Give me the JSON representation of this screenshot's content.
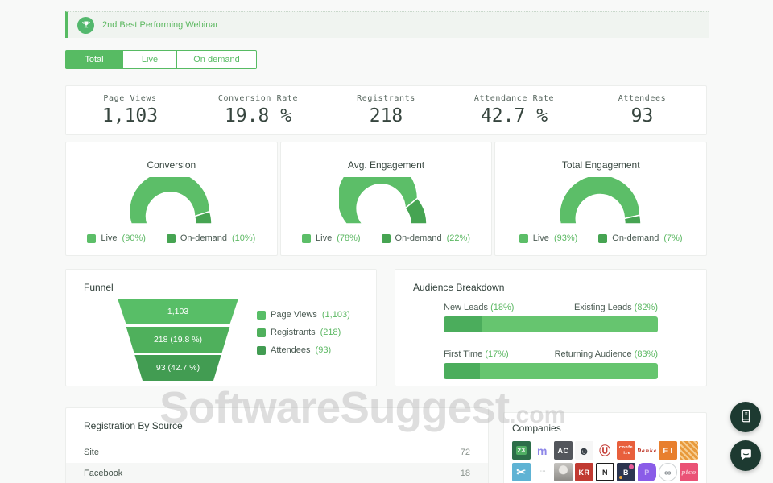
{
  "banner": {
    "icon": "trophy",
    "label": "2nd Best Performing Webinar"
  },
  "tabs": [
    {
      "label": "Total",
      "active": true
    },
    {
      "label": "Live",
      "active": false
    },
    {
      "label": "On demand",
      "active": false
    }
  ],
  "stats": [
    {
      "label": "Page Views",
      "value": "1,103"
    },
    {
      "label": "Conversion Rate",
      "value": "19.8 %"
    },
    {
      "label": "Registrants",
      "value": "218"
    },
    {
      "label": "Attendance Rate",
      "value": "42.7 %"
    },
    {
      "label": "Attendees",
      "value": "93"
    }
  ],
  "gauges": [
    {
      "title": "Conversion",
      "segments": [
        {
          "label": "Live",
          "pct": 90
        },
        {
          "label": "On-demand",
          "pct": 10
        }
      ]
    },
    {
      "title": "Avg. Engagement",
      "segments": [
        {
          "label": "Live",
          "pct": 78
        },
        {
          "label": "On-demand",
          "pct": 22
        }
      ]
    },
    {
      "title": "Total Engagement",
      "segments": [
        {
          "label": "Live",
          "pct": 93
        },
        {
          "label": "On-demand",
          "pct": 7
        }
      ]
    }
  ],
  "funnel": {
    "title": "Funnel",
    "stages": [
      {
        "bar_label": "1,103",
        "legend_label": "Page Views",
        "legend_value": "(1,103)",
        "color": "#58be67"
      },
      {
        "bar_label": "218 (19.8 %)",
        "legend_label": "Registrants",
        "legend_value": "(218)",
        "color": "#4fb05c"
      },
      {
        "bar_label": "93 (42.7 %)",
        "legend_label": "Attendees",
        "legend_value": "(93)",
        "color": "#429c52"
      }
    ]
  },
  "audience": {
    "title": "Audience Breakdown",
    "left_color": "#4bad5c",
    "right_color": "#66c56f",
    "bars": [
      {
        "left_label": "New Leads",
        "left_pct_text": "(18%)",
        "right_label": "Existing Leads",
        "right_pct_text": "(82%)",
        "left_value": 18
      },
      {
        "left_label": "First Time",
        "left_pct_text": "(17%)",
        "right_label": "Returning Audience",
        "right_pct_text": "(83%)",
        "left_value": 17
      }
    ]
  },
  "registration": {
    "title": "Registration By Source",
    "rows": [
      {
        "source": "Site",
        "count": "72"
      },
      {
        "source": "Facebook",
        "count": "18"
      }
    ]
  },
  "companies": {
    "title": "Companies",
    "logos": [
      {
        "name": "green-badge",
        "text": "23",
        "bg": "#2c6e49",
        "fg": "#ffffff",
        "style": "chip"
      },
      {
        "name": "m-wordmark",
        "text": "m",
        "bg": "transparent",
        "fg": "#8d86e8",
        "style": "big"
      },
      {
        "name": "ac-monogram",
        "text": "AC",
        "bg": "#53565c",
        "fg": "#ffffff",
        "style": ""
      },
      {
        "name": "robot-face",
        "text": "☻",
        "bg": "#f6f6f6",
        "fg": "#3a4148",
        "style": "big"
      },
      {
        "name": "u-shield",
        "text": "Ⓤ",
        "bg": "#ffffff",
        "fg": "#c43c35",
        "style": "big"
      },
      {
        "name": "conferize",
        "text": "confe rize",
        "bg": "#e85f3c",
        "fg": "#ffffff",
        "style": "tiny"
      },
      {
        "name": "red-script-wordmark",
        "text": "Danke",
        "bg": "transparent",
        "fg": "#c0392b",
        "style": "script"
      },
      {
        "name": "fi-monogram",
        "text": "F I",
        "bg": "#e87f2e",
        "fg": "#ffffff",
        "style": ""
      },
      {
        "name": "weave-pattern",
        "text": "",
        "bg": "#e89a3c",
        "fg": "#ffffff",
        "style": "weave"
      },
      {
        "name": "scissors-mark",
        "text": "✂",
        "bg": "#5fb3d4",
        "fg": "#ffffff",
        "style": "big"
      },
      {
        "name": "gray-wordmark",
        "text": "····",
        "bg": "transparent",
        "fg": "#9aa1a0",
        "style": "tiny"
      },
      {
        "name": "portrait-photo",
        "text": "",
        "bg": "#9a9894",
        "fg": "#ffffff",
        "style": "photo"
      },
      {
        "name": "kr-monogram",
        "text": "KR",
        "bg": "#c13a32",
        "fg": "#ffffff",
        "style": ""
      },
      {
        "name": "n-box",
        "text": "N",
        "bg": "#ffffff",
        "fg": "#1d1d1d",
        "style": "boxed"
      },
      {
        "name": "b-dots",
        "text": "B",
        "bg": "#2b3550",
        "fg": "#ffffff",
        "style": "dots"
      },
      {
        "name": "p-bubble",
        "text": "P",
        "bg": "#8a5ce8",
        "fg": "#cdb8f7",
        "style": "bubble"
      },
      {
        "name": "infinity-circle",
        "text": "∞",
        "bg": "#ffffff",
        "fg": "#8a9094",
        "style": "circle"
      },
      {
        "name": "pico-wordmark",
        "text": "pico",
        "bg": "#ea5276",
        "fg": "#f8c0cd",
        "style": "tinyscript"
      }
    ]
  },
  "watermark": {
    "text": "SoftwareSuggest",
    "suffix": ".com"
  },
  "colors": {
    "accent": "#57bb63",
    "live": "#5cbe68",
    "ondemand": "#46a452",
    "green_text": "#5cb863",
    "dark_text": "#36453e",
    "muted_text": "#56655d",
    "page_bg": "#f8f9f8",
    "card_border": "#ecefec",
    "fab_bg": "#1d3a31"
  }
}
